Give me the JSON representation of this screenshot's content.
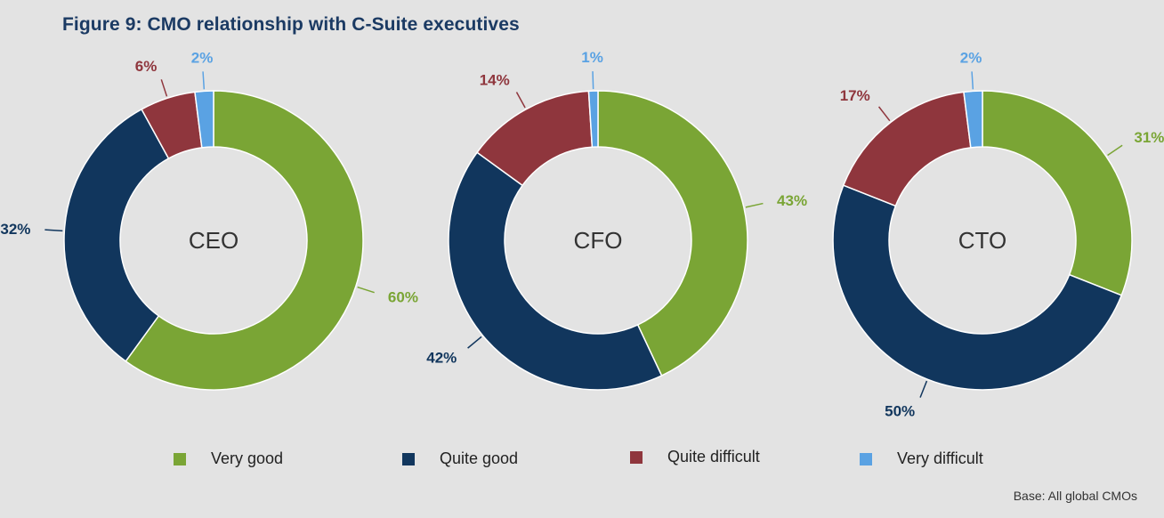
{
  "title": "Figure 9: CMO relationship with C-Suite executives",
  "base_note": "Base: All global CMOs",
  "colors": {
    "very_good": "#7aa535",
    "quite_good": "#11365d",
    "quite_difficult": "#8f363d",
    "very_difficult": "#5aa2e3"
  },
  "legend": [
    {
      "label": "Very good",
      "color": "#7aa535"
    },
    {
      "label": "Quite good",
      "color": "#11365d"
    },
    {
      "label": "Quite difficult",
      "color": "#8f363d"
    },
    {
      "label": "Very difficult",
      "color": "#5aa2e3"
    }
  ],
  "chart_data": [
    {
      "type": "pie",
      "donut": true,
      "title": "CEO",
      "categories": [
        "Very good",
        "Quite good",
        "Quite difficult",
        "Very difficult"
      ],
      "values": [
        60,
        32,
        6,
        2
      ],
      "labels": [
        "60%",
        "32%",
        "6%",
        "2%"
      ]
    },
    {
      "type": "pie",
      "donut": true,
      "title": "CFO",
      "categories": [
        "Very good",
        "Quite good",
        "Quite difficult",
        "Very difficult"
      ],
      "values": [
        43,
        42,
        14,
        1
      ],
      "labels": [
        "43%",
        "42%",
        "14%",
        "1%"
      ]
    },
    {
      "type": "pie",
      "donut": true,
      "title": "CTO",
      "categories": [
        "Very good",
        "Quite good",
        "Quite difficult",
        "Very difficult"
      ],
      "values": [
        31,
        50,
        17,
        2
      ],
      "labels": [
        "31%",
        "50%",
        "17%",
        "2%"
      ]
    }
  ]
}
